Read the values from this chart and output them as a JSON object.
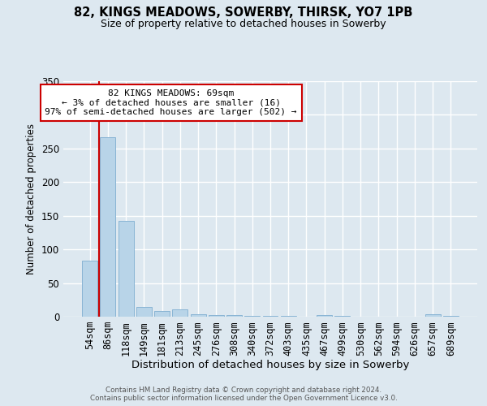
{
  "title1": "82, KINGS MEADOWS, SOWERBY, THIRSK, YO7 1PB",
  "title2": "Size of property relative to detached houses in Sowerby",
  "xlabel": "Distribution of detached houses by size in Sowerby",
  "ylabel": "Number of detached properties",
  "categories": [
    "54sqm",
    "86sqm",
    "118sqm",
    "149sqm",
    "181sqm",
    "213sqm",
    "245sqm",
    "276sqm",
    "308sqm",
    "340sqm",
    "372sqm",
    "403sqm",
    "435sqm",
    "467sqm",
    "499sqm",
    "530sqm",
    "562sqm",
    "594sqm",
    "626sqm",
    "657sqm",
    "689sqm"
  ],
  "values": [
    83,
    267,
    142,
    15,
    9,
    11,
    4,
    3,
    2,
    1,
    1,
    1,
    0,
    3,
    1,
    0,
    0,
    0,
    0,
    4,
    1
  ],
  "bar_color": "#b8d4e8",
  "bar_edge_color": "#88b4d4",
  "highlight_color": "#cc0000",
  "annotation_line1": "82 KINGS MEADOWS: 69sqm",
  "annotation_line2": "← 3% of detached houses are smaller (16)",
  "annotation_line3": "97% of semi-detached houses are larger (502) →",
  "ylim_max": 350,
  "yticks": [
    0,
    50,
    100,
    150,
    200,
    250,
    300,
    350
  ],
  "background_color": "#dde8f0",
  "grid_color": "#ffffff",
  "footer1": "Contains HM Land Registry data © Crown copyright and database right 2024.",
  "footer2": "Contains public sector information licensed under the Open Government Licence v3.0."
}
